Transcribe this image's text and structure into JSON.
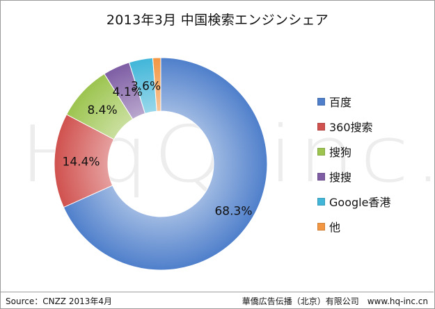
{
  "chart_data": {
    "type": "pie",
    "title": "2013年3月 中国検索エンジンシェア",
    "categories": [
      "百度",
      "360搜索",
      "搜狗",
      "搜搜",
      "Google香港",
      "他"
    ],
    "values": [
      68.3,
      14.4,
      8.4,
      4.1,
      3.6,
      1.2
    ],
    "labels": [
      "68.3%",
      "14.4%",
      "8.4%",
      "4.1%",
      "3.6%",
      ""
    ],
    "colors": [
      "#4f7fcb",
      "#d0514e",
      "#9cc44f",
      "#7e5da4",
      "#41b6d9",
      "#f39642"
    ],
    "legend_position": "right",
    "donut": true
  },
  "footer": {
    "source": "Source：CNZZ 2013年4月",
    "company": "華僑広告伝播（北京）有限公司　www.hq-inc.cn"
  },
  "watermark": "HqQ-inc."
}
